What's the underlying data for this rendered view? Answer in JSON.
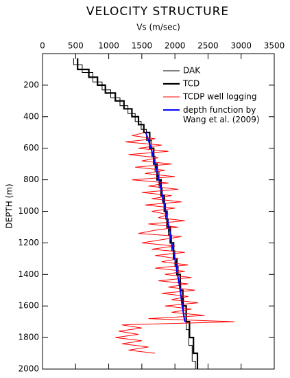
{
  "chart_data": {
    "type": "line",
    "title": "VELOCITY STRUCTURE",
    "xlabel": "Vs (m/sec)",
    "ylabel": "DEPTH (m)",
    "xlim": [
      0,
      3500
    ],
    "xticks": [
      0,
      500,
      1000,
      1500,
      2000,
      2500,
      3000,
      3500
    ],
    "ylim": [
      0,
      2000
    ],
    "yticks": [
      200,
      400,
      600,
      800,
      1000,
      1200,
      1400,
      1600,
      1800,
      2000
    ],
    "y_inverted": true,
    "legend": "upper right",
    "series": [
      {
        "name": "DAK",
        "color": "#000000",
        "width": 1,
        "x": [
          470,
          470,
          600,
          600,
          760,
          760,
          900,
          900,
          1030,
          1030,
          1170,
          1170,
          1290,
          1290,
          1400,
          1400,
          1490,
          1490,
          1570,
          1570,
          1650,
          1650,
          1700,
          1700,
          1760,
          1760,
          1810,
          1810,
          1860,
          1860,
          1900,
          1900,
          1950,
          1950,
          2000,
          2000,
          2050,
          2050,
          2090,
          2090,
          2130,
          2130,
          2170,
          2170,
          2210,
          2210,
          2260,
          2260,
          2310,
          2310
        ],
        "y": [
          30,
          70,
          70,
          120,
          120,
          180,
          180,
          230,
          230,
          280,
          280,
          330,
          330,
          380,
          380,
          430,
          430,
          480,
          480,
          550,
          550,
          650,
          650,
          750,
          750,
          850,
          850,
          950,
          950,
          1050,
          1050,
          1150,
          1150,
          1250,
          1250,
          1350,
          1350,
          1450,
          1450,
          1550,
          1550,
          1650,
          1650,
          1750,
          1750,
          1850,
          1850,
          1950,
          1950,
          2000
        ]
      },
      {
        "name": "TCD",
        "color": "#000000",
        "width": 2.2,
        "x": [
          530,
          530,
          700,
          700,
          830,
          830,
          950,
          950,
          1100,
          1100,
          1230,
          1230,
          1350,
          1350,
          1450,
          1450,
          1530,
          1530,
          1620,
          1620,
          1680,
          1680,
          1730,
          1730,
          1790,
          1790,
          1840,
          1840,
          1880,
          1880,
          1930,
          1930,
          1980,
          1980,
          2030,
          2030,
          2080,
          2080,
          2120,
          2120,
          2170,
          2170,
          2220,
          2220,
          2280,
          2280,
          2340,
          2340
        ],
        "y": [
          30,
          100,
          100,
          150,
          150,
          200,
          200,
          250,
          250,
          300,
          300,
          350,
          350,
          400,
          400,
          450,
          450,
          500,
          500,
          600,
          600,
          700,
          700,
          800,
          800,
          900,
          900,
          1000,
          1000,
          1100,
          1100,
          1200,
          1200,
          1300,
          1300,
          1400,
          1400,
          1500,
          1500,
          1600,
          1600,
          1700,
          1700,
          1800,
          1800,
          1900,
          1900,
          2000
        ]
      },
      {
        "name": "TCDP well logging",
        "color": "#ff0000",
        "width": 1,
        "x": [
          1550,
          1350,
          1700,
          1250,
          1800,
          1450,
          1900,
          1300,
          1750,
          1500,
          1950,
          1400,
          1850,
          1550,
          2000,
          1350,
          1900,
          1600,
          2050,
          1500,
          1950,
          1650,
          2100,
          1550,
          2000,
          1650,
          1900,
          1750,
          2150,
          1600,
          2050,
          1700,
          1450,
          2100,
          1800,
          1500,
          2000,
          1650,
          2150,
          1700,
          2050,
          1800,
          2200,
          1700,
          2150,
          1850,
          2250,
          1750,
          2200,
          1900,
          2300,
          1800,
          2200,
          1950,
          2350,
          1850,
          2250,
          1950,
          2450,
          1600,
          2900,
          1200,
          1500,
          1150,
          1450,
          1100,
          1500,
          1200,
          1600,
          1300,
          1700
        ],
        "y": [
          500,
          520,
          540,
          560,
          580,
          600,
          620,
          640,
          660,
          680,
          700,
          720,
          740,
          760,
          780,
          800,
          820,
          840,
          860,
          880,
          900,
          920,
          940,
          960,
          980,
          1000,
          1020,
          1040,
          1060,
          1080,
          1100,
          1120,
          1140,
          1160,
          1180,
          1200,
          1220,
          1240,
          1260,
          1280,
          1300,
          1320,
          1340,
          1360,
          1380,
          1400,
          1420,
          1440,
          1460,
          1480,
          1500,
          1520,
          1540,
          1560,
          1580,
          1600,
          1620,
          1640,
          1660,
          1680,
          1700,
          1720,
          1740,
          1760,
          1780,
          1800,
          1820,
          1840,
          1860,
          1880,
          1900
        ]
      },
      {
        "name": "depth function by\nWang et al. (2009)",
        "color": "#0000ff",
        "width": 2,
        "x": [
          1560,
          1640,
          1700,
          1760,
          1810,
          1860,
          1910,
          1950,
          2000,
          2040,
          2080,
          2110,
          2150
        ],
        "y": [
          500,
          600,
          700,
          800,
          900,
          1000,
          1100,
          1200,
          1300,
          1400,
          1500,
          1600,
          1700
        ]
      }
    ]
  }
}
